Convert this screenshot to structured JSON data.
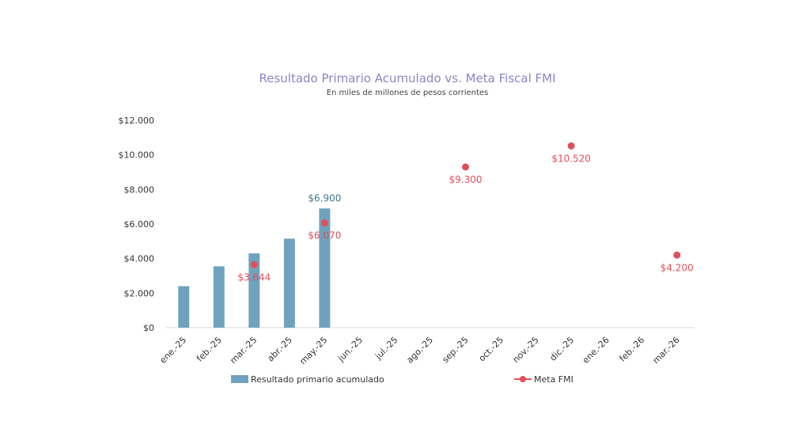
{
  "chart_data": {
    "type": "bar",
    "title": "Resultado Primario Acumulado vs. Meta Fiscal FMI",
    "subtitle": "En miles de millones de pesos corrientes",
    "categories": [
      "ene.-25",
      "feb.-25",
      "mar.-25",
      "abr.-25",
      "may.-25",
      "jun.-25",
      "jul.-25",
      "ago.-25",
      "sep.-25",
      "oct.-25",
      "nov.-25",
      "dic.-25",
      "ene.-26",
      "feb.-26",
      "mar.-26"
    ],
    "ylim": [
      0,
      12000
    ],
    "yticks": [
      0,
      2000,
      4000,
      6000,
      8000,
      10000,
      12000
    ],
    "ytick_labels": [
      "$0",
      "$2.000",
      "$4.000",
      "$6.000",
      "$8.000",
      "$10.000",
      "$12.000"
    ],
    "grid": false,
    "legend_position": "bottom",
    "colors": {
      "bar": "#6fa3bd",
      "meta": "#e0505a",
      "title": "#8a86c4",
      "bar_label": "#3f7890"
    },
    "series": [
      {
        "name": "Resultado primario acumulado",
        "type": "bar",
        "values": [
          2400,
          3550,
          4300,
          5150,
          6900,
          null,
          null,
          null,
          null,
          null,
          null,
          null,
          null,
          null,
          null
        ],
        "labels": [
          null,
          null,
          null,
          null,
          "$6.900",
          null,
          null,
          null,
          null,
          null,
          null,
          null,
          null,
          null,
          null
        ]
      },
      {
        "name": "Meta FMI",
        "type": "point",
        "values": [
          null,
          null,
          3644,
          null,
          6070,
          null,
          null,
          null,
          9300,
          null,
          null,
          10520,
          null,
          null,
          4200
        ],
        "labels": [
          null,
          null,
          "$3.644",
          null,
          "$6.070",
          null,
          null,
          null,
          "$9.300",
          null,
          null,
          "$10.520",
          null,
          null,
          "$4.200"
        ]
      }
    ]
  }
}
